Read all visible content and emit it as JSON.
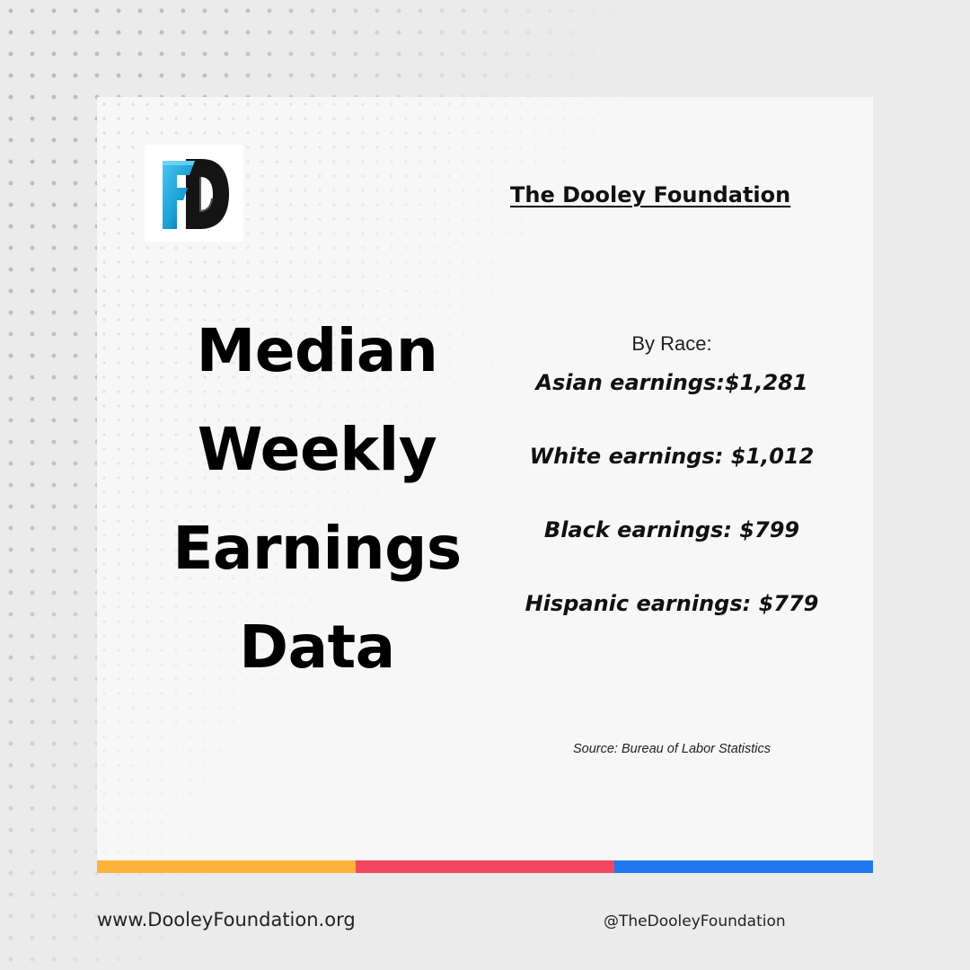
{
  "header": {
    "org_name": "The Dooley Foundation",
    "logo_icon": "dooley-foundation-logo-icon"
  },
  "headline": {
    "lines": [
      "Median",
      "Weekly",
      "Earnings",
      "Data"
    ]
  },
  "stats": {
    "label": "By Race:",
    "items": [
      "Asian earnings:$1,281",
      "White earnings: $1,012",
      "Black earnings: $799",
      "Hispanic earnings: $779"
    ]
  },
  "source": "Source: Bureau of Labor Statistics",
  "footer": {
    "website": "www.DooleyFoundation.org",
    "handle": "@TheDooleyFoundation"
  },
  "colors": {
    "bar_yellow": "#fbb33a",
    "bar_red": "#f2475c",
    "bar_blue": "#1f78f0",
    "logo_blue": "#1a9fd6",
    "logo_black": "#141414"
  }
}
